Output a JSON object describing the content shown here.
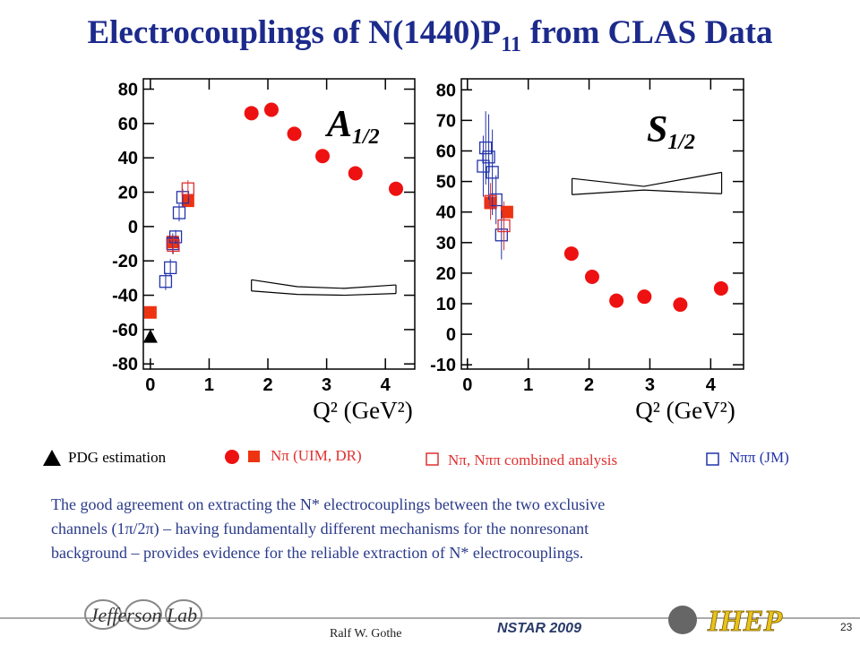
{
  "title": {
    "text": "Electrocouplings of N(1440)P",
    "subscript": "11",
    "text_after": "from CLAS Data"
  },
  "chart_data": [
    {
      "type": "scatter",
      "label": {
        "text": "A",
        "subscript": "1/2"
      },
      "x_label": "Q² (GeV²)",
      "xlim": [
        -0.12,
        4.5
      ],
      "xticks": [
        0,
        1,
        2,
        3,
        4
      ],
      "ylim": [
        -83,
        86
      ],
      "yticks": [
        80,
        60,
        40,
        20,
        0,
        -20,
        -40,
        -60,
        -80
      ],
      "series": [
        {
          "marker": "triangle",
          "color": "#000000",
          "x": [
            0
          ],
          "values": [
            -64
          ]
        },
        {
          "marker": "square",
          "color": "#ee3311",
          "x": [
            0,
            0.38,
            0.64
          ],
          "values": [
            -50,
            -9,
            15
          ]
        },
        {
          "marker": "circle",
          "color": "#ee1111",
          "x": [
            1.72,
            2.06,
            2.45,
            2.93,
            3.49,
            4.18
          ],
          "values": [
            66,
            68,
            54,
            41,
            31,
            22
          ]
        },
        {
          "marker": "open-square",
          "color": "#2233aa",
          "x": [
            0.26,
            0.34,
            0.38,
            0.43,
            0.49,
            0.55
          ],
          "values": [
            -32,
            -24,
            -10,
            -6,
            8,
            17
          ],
          "errors": [
            5,
            5,
            6,
            4,
            5,
            5
          ]
        },
        {
          "marker": "open-square",
          "color": "#e03030",
          "x": [
            0.39,
            0.64
          ],
          "values": [
            -11,
            22
          ],
          "errors": [
            5,
            5
          ]
        }
      ],
      "band": {
        "x": [
          1.72,
          2.5,
          3.3,
          4.18
        ],
        "upper": [
          -31,
          -35,
          -36,
          -34
        ],
        "lower": [
          -37.5,
          -39.5,
          -40,
          -39
        ]
      }
    },
    {
      "type": "scatter",
      "label": {
        "text": "S",
        "subscript": "1/2"
      },
      "x_label": "Q² (GeV²)",
      "xlim": [
        -0.1,
        4.54
      ],
      "xticks": [
        0,
        1,
        2,
        3,
        4
      ],
      "ylim": [
        -11.4,
        83.6
      ],
      "yticks": [
        80,
        70,
        60,
        50,
        40,
        30,
        20,
        10,
        0,
        -10
      ],
      "series": [
        {
          "marker": "circle",
          "color": "#ee1111",
          "x": [
            1.71,
            2.05,
            2.45,
            2.91,
            3.5,
            4.17
          ],
          "values": [
            26.4,
            18.8,
            11,
            12.3,
            9.7,
            15
          ]
        },
        {
          "marker": "square",
          "color": "#ee3311",
          "x": [
            0.38,
            0.65
          ],
          "values": [
            43,
            40
          ]
        },
        {
          "marker": "open-square",
          "color": "#2233aa",
          "x": [
            0.26,
            0.3,
            0.35,
            0.41,
            0.47,
            0.56
          ],
          "values": [
            55,
            61,
            58,
            53,
            44,
            32.5
          ],
          "errors": [
            10,
            12,
            14,
            14,
            8,
            8
          ]
        },
        {
          "marker": "open-square",
          "color": "#e03030",
          "x": [
            0.38,
            0.6
          ],
          "values": [
            43.5,
            35.5
          ],
          "errors": [
            6,
            8
          ]
        }
      ],
      "band": {
        "x": [
          1.72,
          2.9,
          4.18
        ],
        "upper": [
          51,
          48.4,
          53
        ],
        "lower": [
          45.7,
          47.2,
          46
        ]
      }
    }
  ],
  "legend": [
    "PDG estimation",
    "Nπ  (UIM, DR)",
    "Nπ, Nππ combined analysis",
    "Nππ (JM)"
  ],
  "paragraph": [
    "The good agreement on extracting the N* electrocouplings between the two exclusive",
    "channels (1π/2π) – having  fundamentally different mechanisms for the nonresonant",
    "background – provides evidence for the reliable extraction of N* electrocouplings."
  ],
  "footer": {
    "logo_left": "Jefferson Lab",
    "author": "Ralf  W. Gothe",
    "conference": "NSTAR 2009",
    "logo_right": "IHEP",
    "page": "23"
  }
}
